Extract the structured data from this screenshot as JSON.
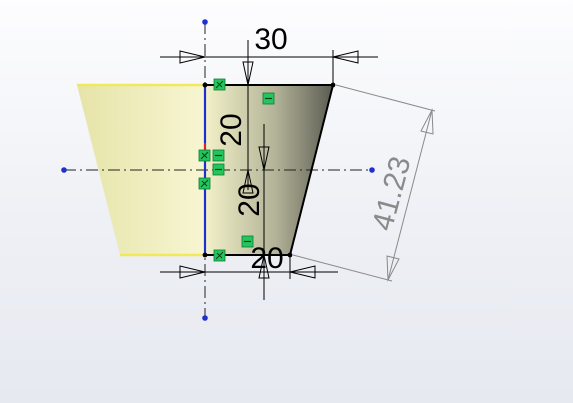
{
  "sketch": {
    "dimensions": {
      "top_width": "30",
      "upper_height": "20",
      "lower_height": "20",
      "bottom_width": "20",
      "slant_length": "41.23"
    }
  },
  "colors": {
    "background": "#eef0f5",
    "shaded_face": "#efeebf",
    "sketch_line": "#000000",
    "axis_line": "#1f2fd0",
    "constraint_marker": "#22c55e",
    "dimension_line": "#000000",
    "driven_dimension": "#8a8a8a",
    "highlight_edge": "#f1e85a"
  },
  "icons": [
    "constraint-coincident-icon",
    "constraint-horizontal-icon",
    "endpoint-dot-icon"
  ]
}
